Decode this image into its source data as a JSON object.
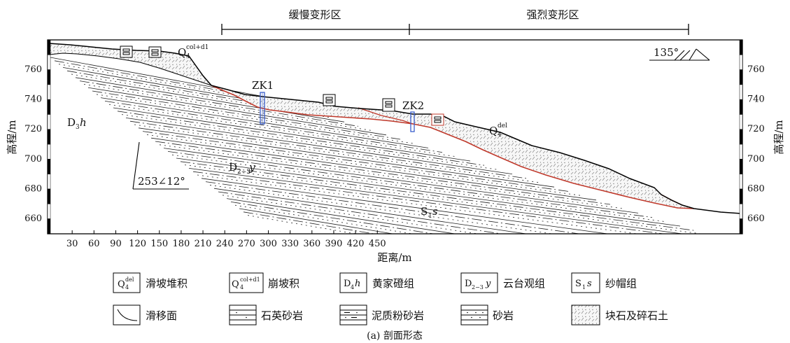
{
  "zones": {
    "slow": "缓慢变形区",
    "strong": "强烈变形区"
  },
  "axes": {
    "xlabel": "距离/m",
    "ylabel_left": "高程/m",
    "ylabel_right": "高程/m",
    "x_ticks": [
      "30",
      "60",
      "90",
      "120",
      "150",
      "180",
      "210",
      "240",
      "270",
      "300",
      "330",
      "360",
      "390",
      "420",
      "450"
    ],
    "y_ticks": [
      "760",
      "740",
      "720",
      "700",
      "680",
      "660"
    ]
  },
  "labels": {
    "q4_colluvial_sub": "col+d1",
    "q4_landslide_sub": "del",
    "q_base": "Q",
    "q_4": "4",
    "d3h_main": "D",
    "d3h_sub": "3",
    "d3h_h": "h",
    "d23y_main": "D",
    "d23y_sub": "2−3",
    "d23y_y": "y",
    "s1s_main": "S",
    "s1s_sub": "1",
    "s1s_s": "s",
    "zk1": "ZK1",
    "zk2": "ZK2",
    "attitude": "253∠12°",
    "strike": "135°"
  },
  "legend": {
    "q4del": "滑坡堆积",
    "q4col": "崩坡积",
    "d4h": "黄家磴组",
    "d4h_sym_main": "D",
    "d4h_sym_sub": "4",
    "d4h_sym_h": "h",
    "d23y": "云台观组",
    "s1s": "纱帽组",
    "slip": "滑移面",
    "quartz": "石英砂岩",
    "mud": "泥质粉砂岩",
    "sand": "砂岩",
    "rubble": "块石及碎石土"
  },
  "caption": "(a) 剖面形态",
  "colors": {
    "slip_surface": "#c0392b",
    "borehole": "#3a5fcd",
    "frame": "#000000"
  }
}
